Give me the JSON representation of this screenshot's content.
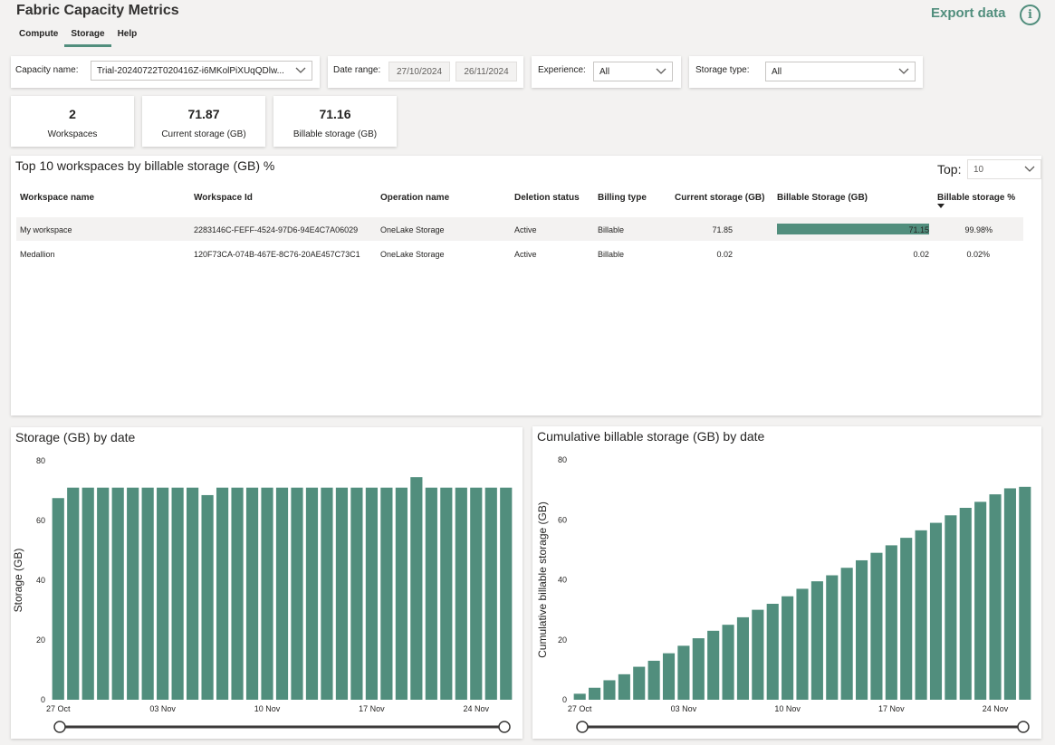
{
  "app": {
    "title": "Fabric Capacity Metrics"
  },
  "tabs": [
    {
      "label": "Compute",
      "active": false
    },
    {
      "label": "Storage",
      "active": true
    },
    {
      "label": "Help",
      "active": false
    }
  ],
  "header": {
    "export_label": "Export data",
    "info_icon": "info-icon",
    "accent_color": "#518e7d"
  },
  "filters": {
    "capacity_label": "Capacity name:",
    "capacity_value": "Trial-20240722T020416Z-i6MKolPiXUqQDlw...",
    "date_range_label": "Date range:",
    "date_start": "27/10/2024",
    "date_end": "26/11/2024",
    "experience_label": "Experience:",
    "experience_value": "All",
    "storage_type_label": "Storage type:",
    "storage_type_value": "All"
  },
  "kpis": [
    {
      "value": "2",
      "label": "Workspaces"
    },
    {
      "value": "71.87",
      "label": "Current storage (GB)"
    },
    {
      "value": "71.16",
      "label": "Billable storage (GB)"
    }
  ],
  "table": {
    "title": "Top 10 workspaces by billable storage (GB) %",
    "top_label": "Top:",
    "top_value": "10",
    "columns": [
      "Workspace name",
      "Workspace Id",
      "Operation name",
      "Deletion status",
      "Billing type",
      "Current storage (GB)",
      "Billable Storage (GB)",
      "Billable storage %"
    ],
    "rows": [
      {
        "name": "My workspace",
        "id": "2283146C-FEFF-4524-97D6-94E4C7A06029",
        "operation": "OneLake Storage",
        "deletion": "Active",
        "billing": "Billable",
        "current": "71.85",
        "billable": "71.15",
        "billable_value": 71.15,
        "pct": "99.98%"
      },
      {
        "name": "Medallion",
        "id": "120F73CA-074B-467E-8C76-20AE457C73C1",
        "operation": "OneLake Storage",
        "deletion": "Active",
        "billing": "Billable",
        "current": "0.02",
        "billable": "0.02",
        "billable_value": 0.02,
        "pct": "0.02%"
      }
    ]
  },
  "chart_data": [
    {
      "type": "bar",
      "title": "Storage (GB) by date",
      "xlabel": "",
      "ylabel": "Storage (GB)",
      "ylim": [
        0,
        80
      ],
      "yticks": [
        "0",
        "20",
        "40",
        "60",
        "80"
      ],
      "xtick_labels": [
        "27 Oct",
        "03 Nov",
        "10 Nov",
        "17 Nov",
        "24 Nov"
      ],
      "x_start": "2024-10-27",
      "values": [
        67.5,
        71,
        71,
        71,
        71,
        71,
        71,
        71,
        71,
        71,
        68.5,
        71,
        71,
        71,
        71,
        71,
        71,
        71,
        71,
        71,
        71,
        71,
        71,
        71,
        74.5,
        71,
        71,
        71,
        71,
        71,
        71
      ],
      "color": "#518e7d"
    },
    {
      "type": "bar",
      "title": "Cumulative billable storage (GB) by date",
      "xlabel": "",
      "ylabel": "Cumulative billable storage (GB)",
      "ylim": [
        0,
        80
      ],
      "yticks": [
        "0",
        "20",
        "40",
        "60",
        "80"
      ],
      "xtick_labels": [
        "27 Oct",
        "03 Nov",
        "10 Nov",
        "17 Nov",
        "24 Nov"
      ],
      "x_start": "2024-10-27",
      "values": [
        2,
        4,
        6.5,
        8.5,
        11,
        13,
        15.5,
        18,
        20.5,
        23,
        25,
        27.5,
        30,
        32,
        34.5,
        37,
        39.5,
        41.5,
        44,
        46.5,
        49,
        51.5,
        54,
        56.5,
        59,
        61.5,
        64,
        66,
        68.5,
        70.5,
        71
      ],
      "color": "#518e7d"
    }
  ]
}
